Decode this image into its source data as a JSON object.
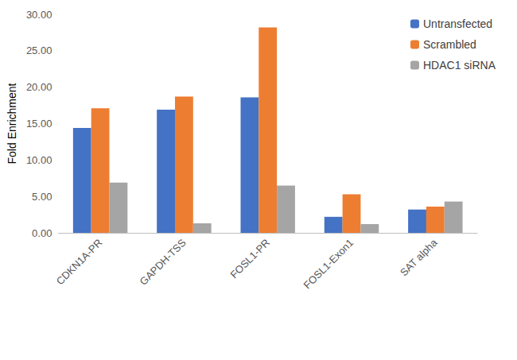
{
  "chart_data": {
    "type": "bar",
    "y_label": "Fold Enrichment",
    "categories": [
      "CDKN1A-PR",
      "GAPDH-TSS",
      "FOSL1-PR",
      "FOSL1-Exon1",
      "SAT alpha"
    ],
    "series": [
      {
        "name": "Untransfected",
        "color": "#4472c4",
        "values": [
          14.4,
          16.9,
          18.6,
          2.2,
          3.2
        ]
      },
      {
        "name": "Scrambled",
        "color": "#ed7d31",
        "values": [
          17.1,
          18.7,
          28.2,
          5.3,
          3.6
        ]
      },
      {
        "name": "HDAC1 siRNA",
        "color": "#a5a5a5",
        "values": [
          6.9,
          1.3,
          6.5,
          1.2,
          4.3
        ]
      }
    ],
    "ylim": [
      0,
      30
    ],
    "yticks": [
      {
        "value": 0,
        "label": "0.00"
      },
      {
        "value": 5,
        "label": "5.00"
      },
      {
        "value": 10,
        "label": "10.00"
      },
      {
        "value": 15,
        "label": "15.00"
      },
      {
        "value": 20,
        "label": "20.00"
      },
      {
        "value": 25,
        "label": "25.00"
      },
      {
        "value": 30,
        "label": "30.00"
      }
    ],
    "grid": false,
    "legend": "upper right"
  }
}
